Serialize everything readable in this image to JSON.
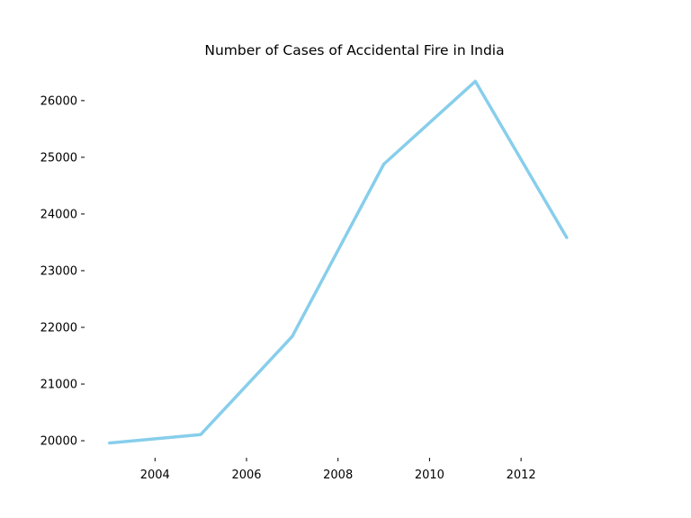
{
  "chart_data": {
    "type": "line",
    "title": "Number of Cases of Accidental Fire in India",
    "xlabel": "",
    "ylabel": "",
    "x": [
      2003,
      2005,
      2007,
      2009,
      2011,
      2013
    ],
    "series": [
      {
        "values": [
          19960,
          20110,
          21840,
          24880,
          26340,
          23580
        ],
        "color": "#87ceeb"
      }
    ],
    "xlim": [
      2002.5,
      2014.2
    ],
    "ylim": [
      19700,
      26680
    ],
    "xticks": [
      "2004",
      "2006",
      "2008",
      "2010",
      "2012"
    ],
    "yticks": [
      "20000",
      "21000",
      "22000",
      "23000",
      "24000",
      "25000",
      "26000"
    ],
    "grid": false,
    "legend": "none",
    "spines": false
  }
}
